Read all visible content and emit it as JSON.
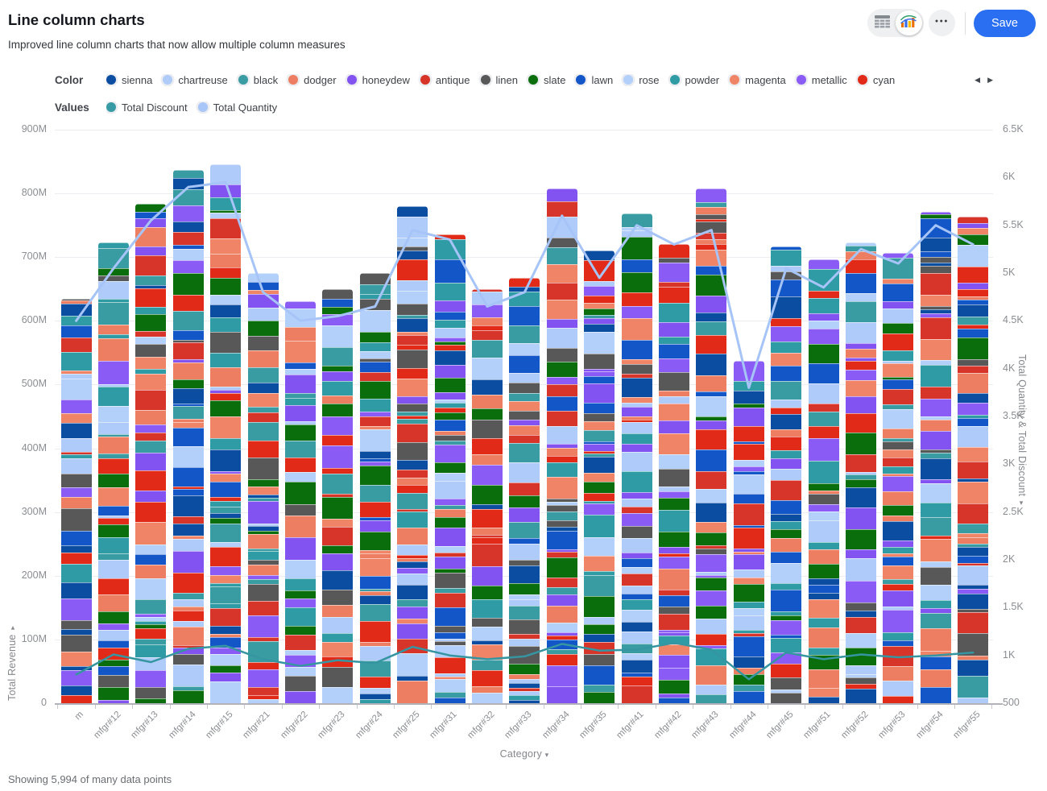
{
  "header": {
    "title": "Line column charts",
    "subtitle": "Improved line column charts that now allow multiple column measures",
    "save_label": "Save",
    "more_glyph": "●●●",
    "icons": [
      "table-grid-icon",
      "bar-chart-icon",
      "ellipsis-icon"
    ]
  },
  "legend": {
    "color_label": "Color",
    "colors": [
      {
        "name": "sienna",
        "hex": "#0b4da1"
      },
      {
        "name": "chartreuse",
        "hex": "#aecbfa"
      },
      {
        "name": "black",
        "hex": "#3a9ca3"
      },
      {
        "name": "dodger",
        "hex": "#ee7e61"
      },
      {
        "name": "honeydew",
        "hex": "#8253f0"
      },
      {
        "name": "antique",
        "hex": "#d7342a"
      },
      {
        "name": "linen",
        "hex": "#585858"
      },
      {
        "name": "slate",
        "hex": "#0a6e0c"
      },
      {
        "name": "lawn",
        "hex": "#1356c8"
      },
      {
        "name": "rose",
        "hex": "#b3d0fb"
      },
      {
        "name": "powder",
        "hex": "#2f9ba5"
      },
      {
        "name": "magenta",
        "hex": "#f08467"
      },
      {
        "name": "metallic",
        "hex": "#8a5cf5"
      },
      {
        "name": "cyan",
        "hex": "#e22a18"
      }
    ],
    "prev_glyph": "◀",
    "next_glyph": "▶",
    "values_label": "Values",
    "values": [
      {
        "name": "Total Discount",
        "hex": "#379ba5"
      },
      {
        "name": "Total Quantity",
        "hex": "#a8c6f8"
      }
    ]
  },
  "axes": {
    "left_title": "Total Revenue",
    "left_ticks": [
      "900M",
      "800M",
      "700M",
      "600M",
      "500M",
      "400M",
      "300M",
      "200M",
      "100M",
      "0"
    ],
    "right_title": "Total Quantity & Total Discount",
    "right_ticks": [
      "6.5K",
      "6K",
      "5.5K",
      "5K",
      "4.5K",
      "4K",
      "3.5K",
      "3K",
      "2.5K",
      "2K",
      "1.5K",
      "1K",
      "500"
    ],
    "x_title": "Category",
    "caret": "▾"
  },
  "chart_data": {
    "type": "bar",
    "subtype": "stacked-columns-with-lines",
    "categories": [
      "m",
      "mfgr#12",
      "mfgr#13",
      "mfgr#14",
      "mfgr#15",
      "mfgr#21",
      "mfgr#22",
      "mfgr#23",
      "mfgr#24",
      "mfgr#25",
      "mfgr#31",
      "mfgr#32",
      "mfgr#33",
      "mfgr#34",
      "mfgr#35",
      "mfgr#41",
      "mfgr#42",
      "mfgr#43",
      "mfgr#44",
      "mfgr#45",
      "mfgr#51",
      "mfgr#52",
      "mfgr#53",
      "mfgr#54",
      "mfgr#55"
    ],
    "bar_series": {
      "name": "Total Revenue",
      "unit": "M",
      "axis": "left",
      "stacked_by_colors": [
        "sienna",
        "chartreuse",
        "black",
        "dodger",
        "honeydew",
        "antique",
        "linen",
        "slate",
        "lawn",
        "rose",
        "powder",
        "magenta",
        "metallic",
        "cyan"
      ],
      "totals": [
        635,
        723,
        784,
        837,
        846,
        675,
        631,
        650,
        675,
        780,
        736,
        650,
        667,
        808,
        711,
        769,
        720,
        808,
        537,
        717,
        696,
        723,
        707,
        771,
        764
      ]
    },
    "line_series": [
      {
        "name": "Total Quantity",
        "axis": "right",
        "color": "#a6c4f7",
        "values": [
          4500,
          5050,
          5550,
          5900,
          5950,
          4800,
          4500,
          4550,
          4650,
          5450,
          5350,
          4650,
          4800,
          5600,
          4950,
          5500,
          5300,
          5450,
          3800,
          5050,
          4850,
          5250,
          5100,
          5500,
          5300
        ]
      },
      {
        "name": "Total Discount",
        "axis": "right",
        "color": "#3595a1",
        "values": [
          800,
          1010,
          930,
          1070,
          1100,
          960,
          890,
          950,
          920,
          1090,
          1000,
          960,
          990,
          1120,
          1050,
          1060,
          1130,
          1060,
          750,
          1030,
          960,
          1010,
          980,
          1000,
          1030
        ]
      }
    ],
    "left_axis": {
      "title": "Total Revenue",
      "min": 0,
      "max": 900,
      "unit": "M",
      "tick_step": 100
    },
    "right_axis": {
      "title": "Total Quantity & Total Discount",
      "min": 500,
      "max": 6500,
      "tick_step": 500
    },
    "grid": true,
    "legend_position": "top"
  },
  "footer": {
    "status": "Showing 5,994 of many data points"
  }
}
